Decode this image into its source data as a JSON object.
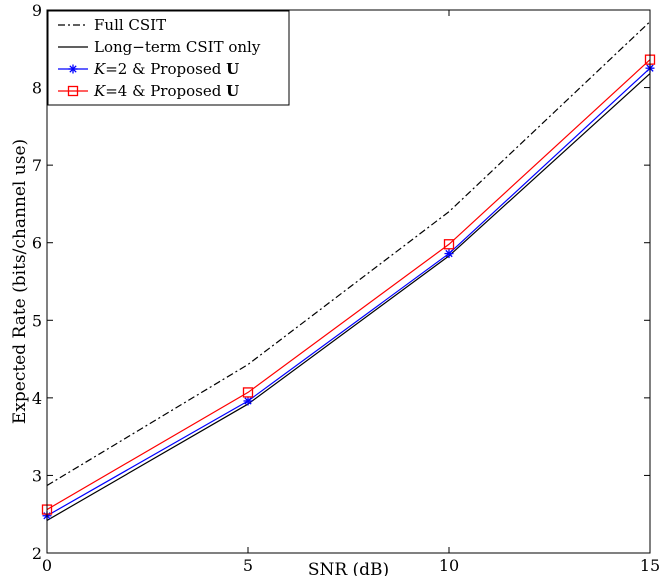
{
  "chart_data": {
    "type": "line",
    "xlabel": "SNR (dB)",
    "ylabel": "Expected Rate (bits/channel use)",
    "xlim": [
      0,
      15
    ],
    "ylim": [
      2,
      9
    ],
    "xticks": [
      0,
      5,
      10,
      15
    ],
    "yticks": [
      2,
      3,
      4,
      5,
      6,
      7,
      8,
      9
    ],
    "grid": false,
    "legend_position": "top-left",
    "x": [
      0,
      5,
      10,
      15
    ],
    "series": [
      {
        "name": "Full CSIT",
        "legend_parts": [
          {
            "t": "Full CSIT",
            "style": "normal"
          }
        ],
        "values": [
          2.87,
          4.43,
          6.4,
          8.85
        ],
        "color": "#000000",
        "dash": "dashdot",
        "marker": "none"
      },
      {
        "name": "Long−term CSIT only",
        "legend_parts": [
          {
            "t": "Long−term CSIT only",
            "style": "normal"
          }
        ],
        "values": [
          2.42,
          3.92,
          5.83,
          8.18
        ],
        "color": "#000000",
        "dash": "solid",
        "marker": "none"
      },
      {
        "name": "K=2 & Proposed U",
        "legend_parts": [
          {
            "t": "K",
            "style": "italic"
          },
          {
            "t": "=2 & Proposed ",
            "style": "normal"
          },
          {
            "t": "U",
            "style": "bold"
          }
        ],
        "values": [
          2.48,
          3.96,
          5.86,
          8.25
        ],
        "color": "#0000ff",
        "dash": "solid",
        "marker": "asterisk"
      },
      {
        "name": "K=4 & Proposed U",
        "legend_parts": [
          {
            "t": "K",
            "style": "italic"
          },
          {
            "t": "=4 & Proposed ",
            "style": "normal"
          },
          {
            "t": "U",
            "style": "bold"
          }
        ],
        "values": [
          2.56,
          4.07,
          5.98,
          8.36
        ],
        "color": "#ff0000",
        "dash": "solid",
        "marker": "square"
      }
    ]
  }
}
